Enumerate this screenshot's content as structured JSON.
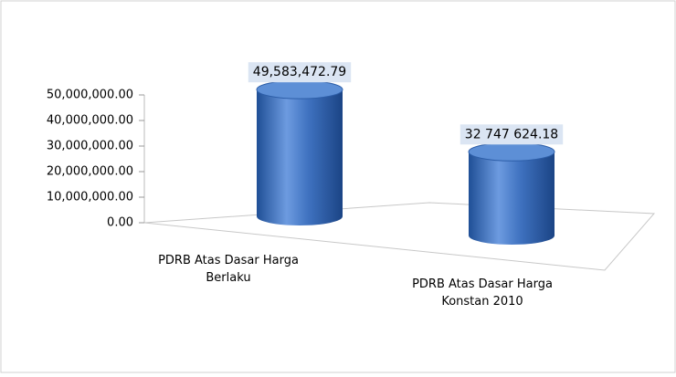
{
  "chart_data": {
    "type": "bar3d",
    "categories": [
      "PDRB Atas Dasar Harga Berlaku",
      "PDRB Atas Dasar Harga Konstan 2010"
    ],
    "values": [
      49583472.79,
      32747624.18
    ],
    "value_labels": [
      "49,583,472.79",
      "32 747 624.18"
    ],
    "color": "#3c6eb8",
    "ylim": [
      0,
      50000000
    ],
    "yticks": [
      {
        "value": 0,
        "label": "0.00"
      },
      {
        "value": 10000000,
        "label": "10,000,000.00"
      },
      {
        "value": 20000000,
        "label": "20,000,000.00"
      },
      {
        "value": 30000000,
        "label": "30,000,000.00"
      },
      {
        "value": 40000000,
        "label": "40,000,000.00"
      },
      {
        "value": 50000000,
        "label": "50,000,000.00"
      }
    ]
  }
}
